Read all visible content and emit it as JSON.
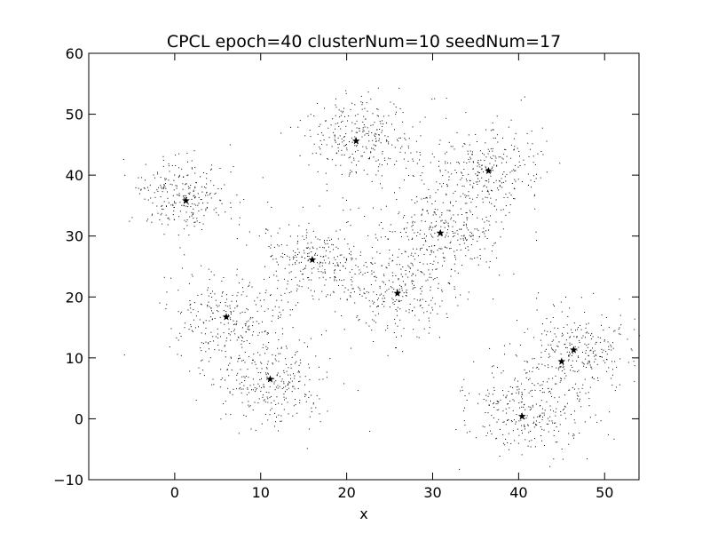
{
  "chart_data": {
    "type": "scatter",
    "title": "CPCL epoch=40 clusterNum=10 seedNum=17",
    "xlabel": "x",
    "ylabel": "",
    "xlim": [
      -10,
      54
    ],
    "ylim": [
      -10,
      60
    ],
    "xticks": [
      0,
      10,
      20,
      30,
      40,
      50
    ],
    "yticks": [
      -10,
      0,
      10,
      20,
      30,
      40,
      50,
      60
    ],
    "xtick_labels": [
      "0",
      "10",
      "20",
      "30",
      "40",
      "50"
    ],
    "ytick_labels": [
      "−10",
      "0",
      "10",
      "20",
      "30",
      "40",
      "50",
      "60"
    ],
    "grid": false,
    "point_color": "#000000",
    "seed_marker": "star",
    "seed_points": [
      {
        "x": 1.3,
        "y": 35.8
      },
      {
        "x": 21.1,
        "y": 45.6
      },
      {
        "x": 36.5,
        "y": 40.7
      },
      {
        "x": 30.9,
        "y": 30.5
      },
      {
        "x": 16.0,
        "y": 26.1
      },
      {
        "x": 25.9,
        "y": 20.6
      },
      {
        "x": 6.0,
        "y": 16.7
      },
      {
        "x": 11.1,
        "y": 6.5
      },
      {
        "x": 40.4,
        "y": 0.4
      },
      {
        "x": 45.0,
        "y": 9.4
      },
      {
        "x": 46.4,
        "y": 11.3
      }
    ],
    "data_clusters": [
      {
        "cx": 1.0,
        "cy": 36.5,
        "spread": 3.0,
        "count": 260
      },
      {
        "cx": 21.5,
        "cy": 46.0,
        "spread": 3.5,
        "count": 300
      },
      {
        "cx": 36.0,
        "cy": 41.0,
        "spread": 3.5,
        "count": 300
      },
      {
        "cx": 31.0,
        "cy": 30.5,
        "spread": 3.5,
        "count": 300
      },
      {
        "cx": 16.5,
        "cy": 26.0,
        "spread": 3.5,
        "count": 280
      },
      {
        "cx": 26.0,
        "cy": 21.0,
        "spread": 3.5,
        "count": 280
      },
      {
        "cx": 6.0,
        "cy": 16.5,
        "spread": 3.5,
        "count": 260
      },
      {
        "cx": 11.5,
        "cy": 6.0,
        "spread": 3.5,
        "count": 300
      },
      {
        "cx": 41.0,
        "cy": 1.5,
        "spread": 3.5,
        "count": 300
      },
      {
        "cx": 46.5,
        "cy": 11.0,
        "spread": 3.5,
        "count": 300
      }
    ]
  }
}
